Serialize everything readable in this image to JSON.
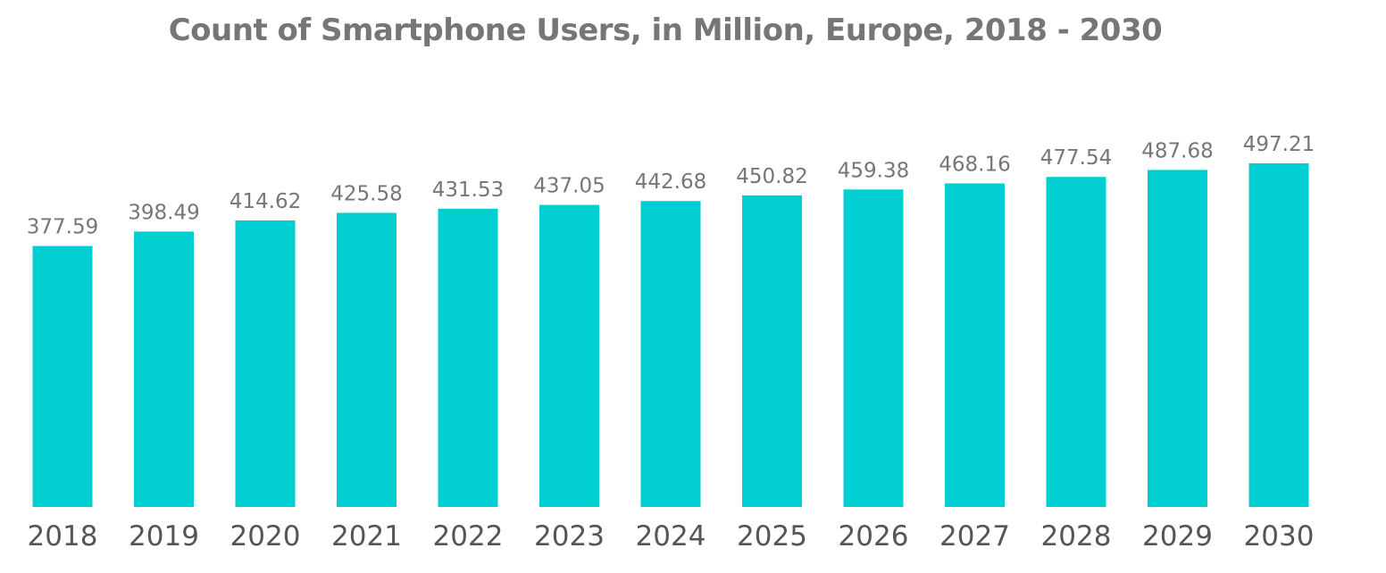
{
  "chart_data": {
    "type": "bar",
    "title": "Count of Smartphone Users, in Million, Europe, 2018 - 2030",
    "xlabel": "",
    "ylabel": "",
    "categories": [
      "2018",
      "2019",
      "2020",
      "2021",
      "2022",
      "2023",
      "2024",
      "2025",
      "2026",
      "2027",
      "2028",
      "2029",
      "2030"
    ],
    "values": [
      377.59,
      398.49,
      414.62,
      425.58,
      431.53,
      437.05,
      442.68,
      450.82,
      459.38,
      468.16,
      477.54,
      487.68,
      497.21
    ],
    "value_labels": [
      "377.59",
      "398.49",
      "414.62",
      "425.58",
      "431.53",
      "437.05",
      "442.68",
      "450.82",
      "459.38",
      "468.16",
      "477.54",
      "487.68",
      "497.21"
    ],
    "ylim": [
      0,
      497.21
    ],
    "grid": false,
    "legend": "none",
    "bar_color": "#00CED1",
    "text_color": "#767676"
  }
}
